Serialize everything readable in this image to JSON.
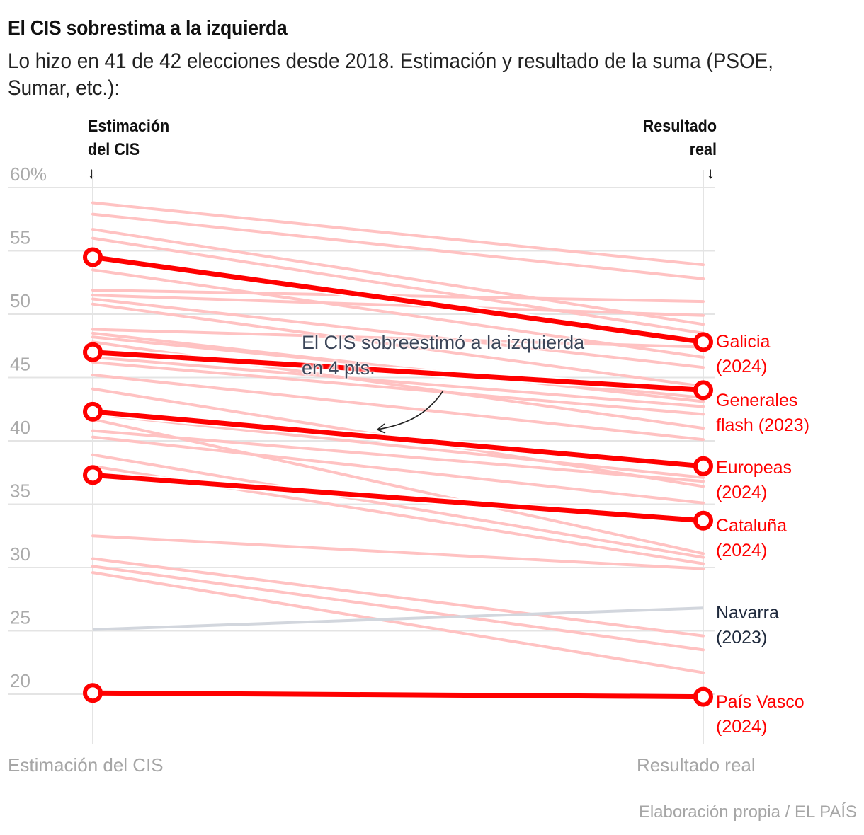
{
  "header": {
    "title": "El CIS sobrestima a la izquierda",
    "subtitle": "Lo hizo en 41 de 42 elecciones desde 2018. Estimación y resultado de la suma (PSOE, Sumar, etc.):"
  },
  "column_headers": {
    "left_line1": "Estimación",
    "left_line2": "del CIS",
    "right_line1": "Resultado",
    "right_line2": "real",
    "arrow": "↓"
  },
  "annotation": {
    "line1": "El CIS sobreestimó a la izquierda",
    "line2": "en 4 pts."
  },
  "source": "Elaboración propia / EL PAÍS",
  "colors": {
    "highlight": "#ff0000",
    "faint": "#ffc2c2",
    "neutral": "#d2d6dd",
    "neutral_label": "#1f2a3d",
    "grid": "#e4e4e4",
    "axis_text": "#aaaaaa"
  },
  "chart_data": {
    "type": "line",
    "subtype": "slope",
    "title": "El CIS sobrestima a la izquierda",
    "subtitle": "Lo hizo en 41 de 42 elecciones desde 2018. Estimación y resultado de la suma (PSOE, Sumar, etc.):",
    "categories": [
      "Estimación del CIS",
      "Resultado real"
    ],
    "ylim": [
      15,
      60
    ],
    "yticks": [
      20,
      25,
      30,
      35,
      40,
      45,
      50,
      55,
      60
    ],
    "ytick_labels": [
      "20",
      "25",
      "30",
      "35",
      "40",
      "45",
      "50",
      "55",
      "60%"
    ],
    "grid": true,
    "highlighted": [
      {
        "name": "Galicia",
        "year": "(2024)",
        "values": [
          54.5,
          47.8
        ],
        "style": "highlight"
      },
      {
        "name": "Generales",
        "name2": "flash (2023)",
        "year": "",
        "values": [
          47.0,
          44.0
        ],
        "style": "highlight"
      },
      {
        "name": "Europeas",
        "year": "(2024)",
        "values": [
          42.3,
          38.0
        ],
        "style": "highlight"
      },
      {
        "name": "Cataluña",
        "year": "(2024)",
        "values": [
          37.3,
          33.7
        ],
        "style": "highlight"
      },
      {
        "name": "Navarra",
        "year": "(2023)",
        "values": [
          25.1,
          26.8
        ],
        "style": "neutral"
      },
      {
        "name": "País Vasco",
        "year": "(2024)",
        "values": [
          20.1,
          19.8
        ],
        "style": "highlight"
      }
    ],
    "background_series": [
      [
        58.8,
        53.9
      ],
      [
        57.9,
        52.8
      ],
      [
        56.7,
        49.2
      ],
      [
        56.0,
        48.5
      ],
      [
        53.5,
        46.6
      ],
      [
        51.9,
        51.0
      ],
      [
        51.5,
        49.9
      ],
      [
        51.2,
        45.8
      ],
      [
        50.8,
        44.3
      ],
      [
        48.8,
        47.4
      ],
      [
        48.5,
        43.1
      ],
      [
        48.2,
        43.4
      ],
      [
        47.8,
        41.0
      ],
      [
        46.6,
        42.7
      ],
      [
        46.2,
        42.1
      ],
      [
        45.2,
        40.1
      ],
      [
        44.1,
        36.4
      ],
      [
        42.1,
        37.1
      ],
      [
        41.7,
        31.1
      ],
      [
        40.8,
        36.8
      ],
      [
        40.3,
        35.1
      ],
      [
        38.9,
        30.8
      ],
      [
        38.0,
        30.3
      ],
      [
        32.5,
        29.9
      ],
      [
        30.7,
        24.6
      ],
      [
        30.1,
        23.5
      ],
      [
        29.6,
        21.7
      ]
    ]
  }
}
